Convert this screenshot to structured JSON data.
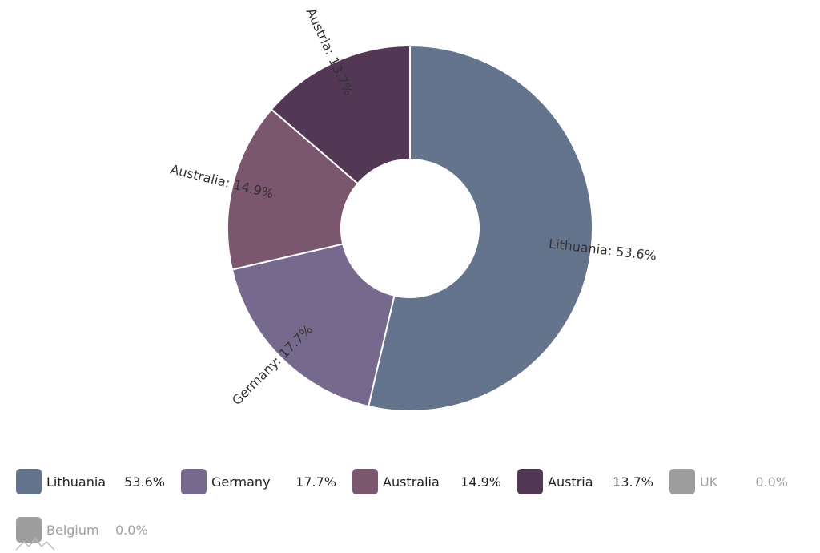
{
  "chart_data": {
    "type": "pie",
    "variant": "donut",
    "legend_position": "bottom",
    "slices": [
      {
        "name": "Lithuania",
        "value": 53.6,
        "label": "Lithuania: 53.6%",
        "legend_value": "53.6%",
        "color": "#64748c",
        "enabled": true
      },
      {
        "name": "Germany",
        "value": 17.7,
        "label": "Germany: 17.7%",
        "legend_value": "17.7%",
        "color": "#756a8e",
        "enabled": true
      },
      {
        "name": "Australia",
        "value": 14.9,
        "label": "Australia: 14.9%",
        "legend_value": "14.9%",
        "color": "#7b566f",
        "enabled": true
      },
      {
        "name": "Austria",
        "value": 13.7,
        "label": "Austria: 13.7%",
        "legend_value": "13.7%",
        "color": "#533855",
        "enabled": true
      },
      {
        "name": "UK",
        "value": 0.0,
        "label": "",
        "legend_value": "0.0%",
        "color": "#9e9e9e",
        "enabled": false
      },
      {
        "name": "Belgium",
        "value": 0.0,
        "label": "",
        "legend_value": "0.0%",
        "color": "#9e9e9e",
        "enabled": false
      }
    ]
  }
}
